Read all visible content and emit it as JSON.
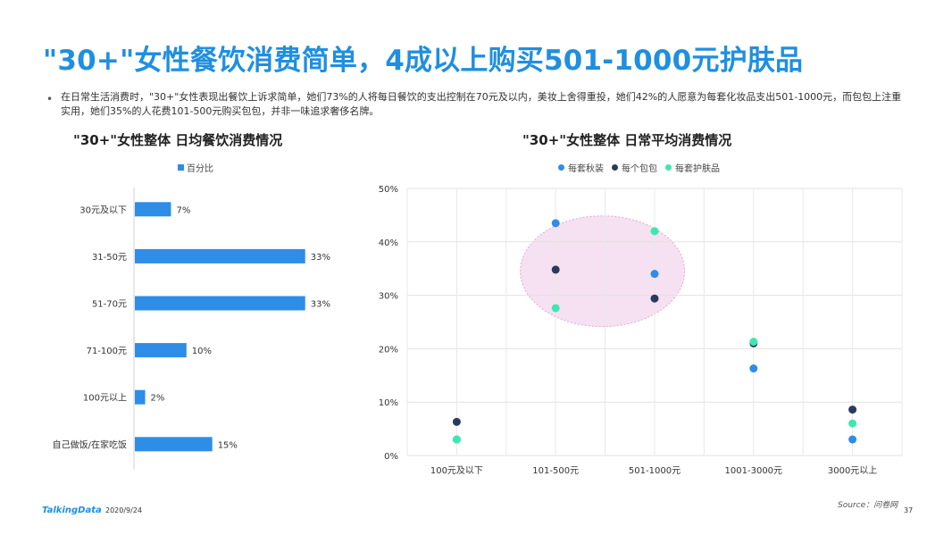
{
  "page": {
    "title": "\"30+\"女性餐饮消费简单，4成以上购买501-1000元护肤品",
    "intro": "在日常生活消费时，\"30+\"女性表现出餐饮上诉求简单，她们73%的人将每日餐饮的支出控制在70元及以内，美妆上舍得重投，她们42%的人愿意为每套化妆品支出501-1000元，而包包上注重实用，她们35%的人花费101-500元购买包包，并非一味追求奢侈名牌。",
    "bullet": "•"
  },
  "footer": {
    "logo": "TalkingData",
    "date": "2020/9/24",
    "source": "Source：问卷网",
    "page_number": "37"
  },
  "chart_data": [
    {
      "type": "bar",
      "orientation": "horizontal",
      "title": "\"30+\"女性整体  日均餐饮消费情况",
      "legend_position": "top",
      "colors": {
        "bar": "#2e8de6"
      },
      "categories": [
        "30元及以下",
        "31-50元",
        "51-70元",
        "71-100元",
        "100元以上",
        "自己做饭/在家吃饭"
      ],
      "series": [
        {
          "name": "百分比",
          "values": [
            7,
            33,
            33,
            10,
            2,
            15
          ],
          "labels": [
            "7%",
            "33%",
            "33%",
            "10%",
            "2%",
            "15%"
          ]
        }
      ],
      "xlim": [
        0,
        40
      ],
      "grid": false
    },
    {
      "type": "scatter",
      "title": "\"30+\"女性整体  日常平均消费情况",
      "legend_position": "top",
      "categories": [
        "100元及以下",
        "101-500元",
        "501-1000元",
        "1001-3000元",
        "3000元以上"
      ],
      "series": [
        {
          "name": "每套秋装",
          "color": "#2e8de6",
          "values": [
            3,
            43.5,
            34,
            16.3,
            3
          ]
        },
        {
          "name": "每个包包",
          "color": "#2b3a5c",
          "values": [
            6.3,
            34.8,
            29.4,
            21,
            8.6
          ]
        },
        {
          "name": "每套护肤品",
          "color": "#3de8b0",
          "values": [
            3,
            27.6,
            42,
            21.3,
            6
          ]
        }
      ],
      "yticks": [
        "0%",
        "10%",
        "20%",
        "30%",
        "40%",
        "50%"
      ],
      "ylim": [
        0,
        50
      ],
      "grid": true,
      "highlight": {
        "shape": "ellipse",
        "fill": "#f3dcf0",
        "stroke": "#e0a6d8",
        "around_categories": [
          "101-500元",
          "501-1000元"
        ]
      }
    }
  ]
}
